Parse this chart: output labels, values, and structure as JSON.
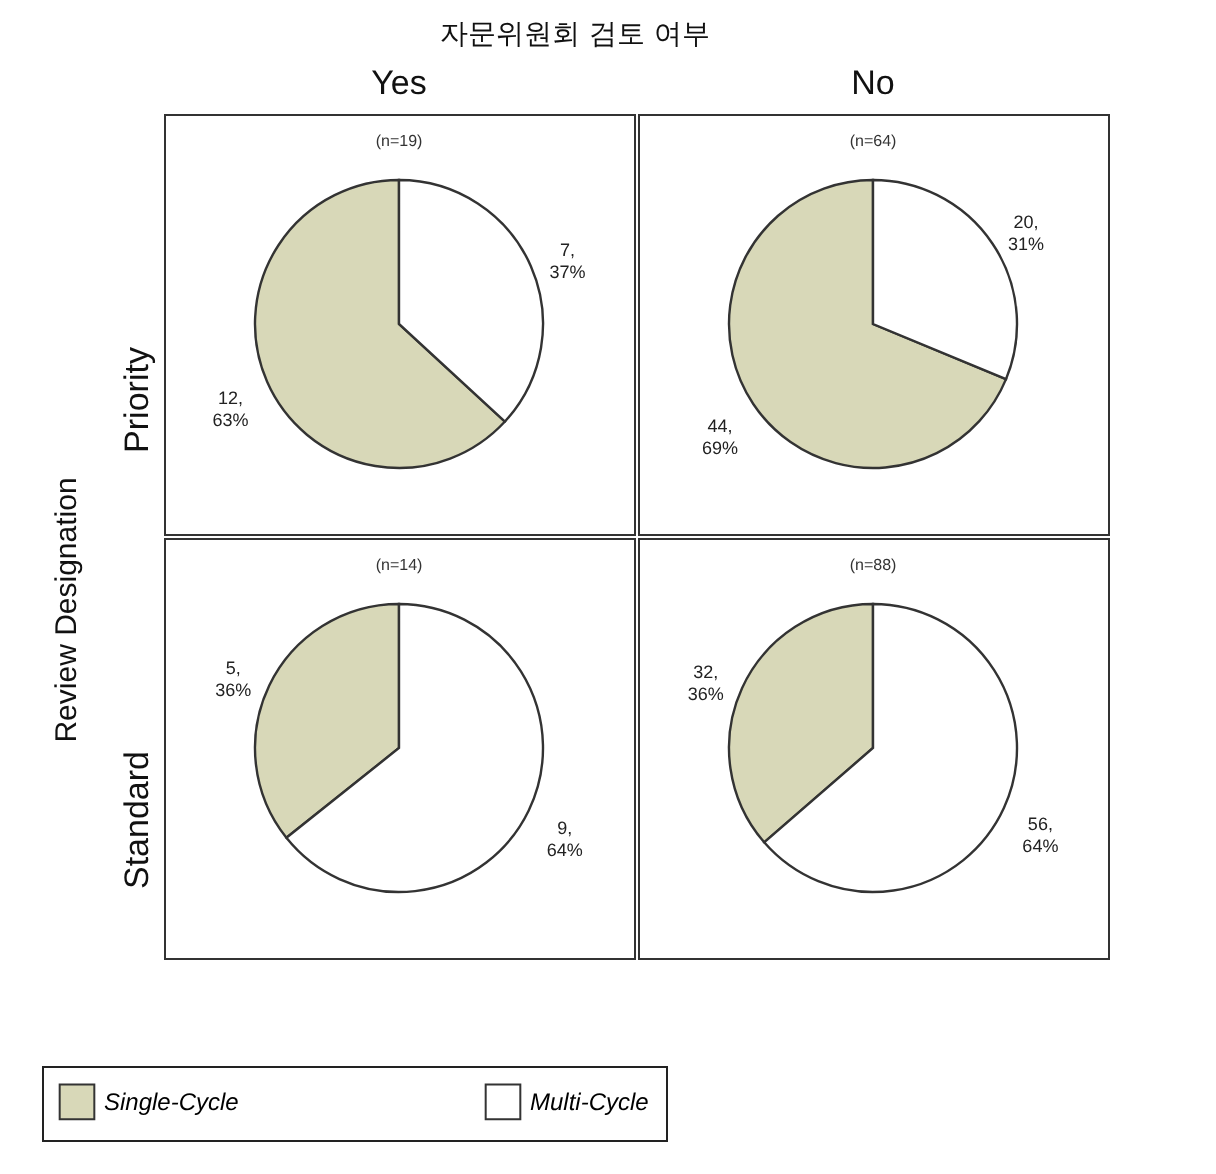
{
  "chart_data": [
    {
      "type": "pie",
      "title": "(n=19)",
      "ylabel": "Review Designation",
      "annotations": [
        "자문위원회 검토 여부",
        "Yes",
        "Priority"
      ],
      "categories": [
        "Single-Cycle",
        "Multi-Cycle"
      ],
      "values": [
        12,
        7
      ],
      "value_labels": [
        "12,\n63%",
        "7,\n37%"
      ],
      "colors": [
        "#d8d8b8",
        "#ffffff"
      ],
      "legend": "bottom"
    },
    {
      "type": "pie",
      "title": "(n=64)",
      "annotations": [
        "No"
      ],
      "categories": [
        null,
        null
      ],
      "values": [
        44,
        20
      ],
      "value_labels": [
        "44,\n69%",
        "20,\n31%"
      ],
      "colors": [
        "#d8d8b8",
        "#ffffff"
      ]
    },
    {
      "type": "pie",
      "title": "(n=14)",
      "annotations": [
        "Standard"
      ],
      "categories": [
        null,
        null
      ],
      "values": [
        5,
        9
      ],
      "value_labels": [
        "5,\n36%",
        "9,\n64%"
      ],
      "colors": [
        "#d8d8b8",
        "#ffffff"
      ]
    },
    {
      "type": "pie",
      "title": "(n=88)",
      "categories": [
        null,
        null
      ],
      "values": [
        32,
        56
      ],
      "value_labels": [
        "32,\n36%",
        "56,\n64%"
      ],
      "colors": [
        "#d8d8b8",
        "#ffffff"
      ]
    }
  ]
}
